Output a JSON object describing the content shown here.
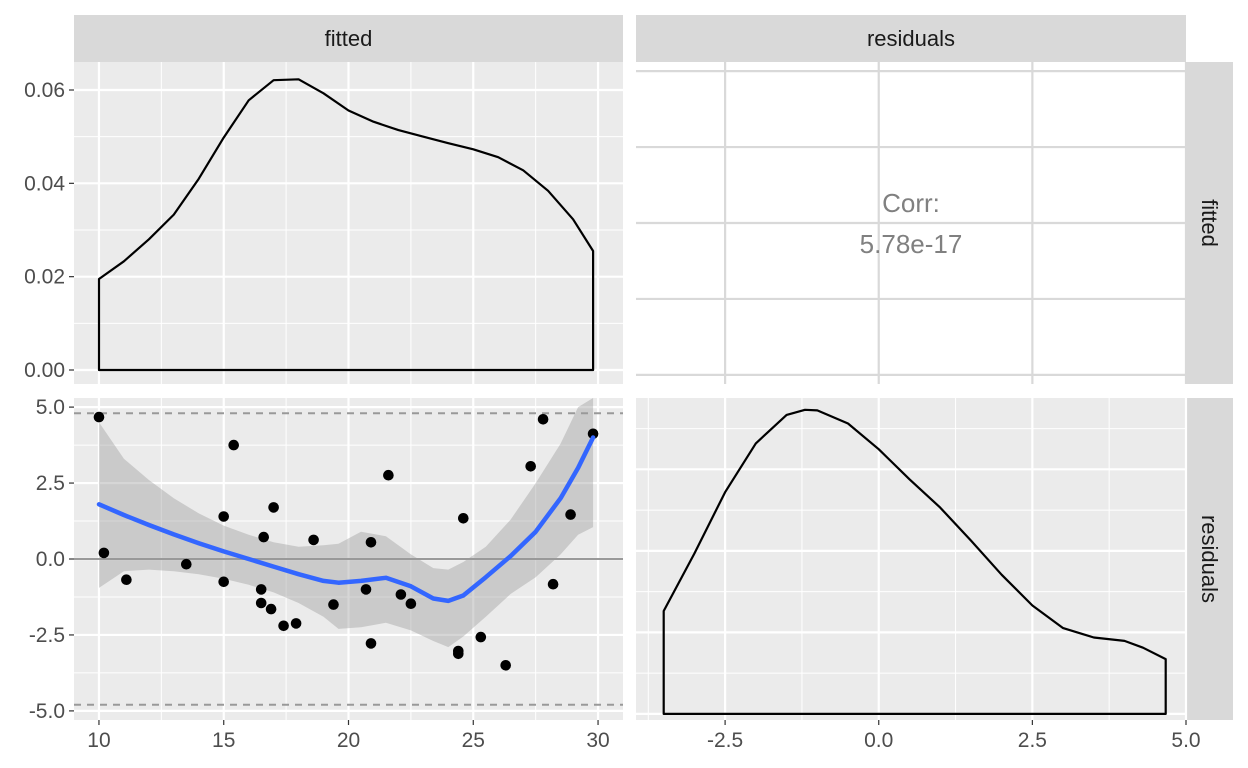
{
  "chart_data": {
    "type": "scatter",
    "layout": "pairs matrix (2x2)",
    "variables": [
      "fitted",
      "residuals"
    ],
    "strip_labels": {
      "top": [
        "fitted",
        "residuals"
      ],
      "right": [
        "fitted",
        "residuals"
      ]
    },
    "colors": {
      "panel_bg": "#ebebeb",
      "grid": "#ffffff",
      "strip_bg": "#d9d9d9",
      "points": "#000000",
      "smooth_line": "#3366ff",
      "confidence_band": "#999999",
      "reference_lines": "#999999",
      "corr_text": "#808080"
    },
    "panels": [
      {
        "id": "fitted-density",
        "type": "area",
        "position": "top-left",
        "xlim": [
          9.0,
          31.0
        ],
        "ylim": [
          -0.003,
          0.066
        ],
        "x_ticks": [
          10,
          15,
          20,
          25,
          30
        ],
        "y_ticks": [
          0.0,
          0.02,
          0.04,
          0.06
        ],
        "y_tick_labels": [
          "0.00",
          "0.02",
          "0.04",
          "0.06"
        ],
        "density": [
          [
            10.0,
            0.0195
          ],
          [
            11.0,
            0.0233
          ],
          [
            12.0,
            0.028
          ],
          [
            13.0,
            0.0333
          ],
          [
            14.0,
            0.041
          ],
          [
            15.0,
            0.0498
          ],
          [
            16.0,
            0.0578
          ],
          [
            17.0,
            0.0621
          ],
          [
            18.0,
            0.0623
          ],
          [
            19.0,
            0.0593
          ],
          [
            20.0,
            0.0556
          ],
          [
            21.0,
            0.0532
          ],
          [
            22.0,
            0.0514
          ],
          [
            23.0,
            0.05
          ],
          [
            24.0,
            0.0486
          ],
          [
            25.0,
            0.0473
          ],
          [
            26.0,
            0.0456
          ],
          [
            27.0,
            0.0428
          ],
          [
            28.0,
            0.0384
          ],
          [
            29.0,
            0.0323
          ],
          [
            29.8,
            0.0255
          ]
        ]
      },
      {
        "id": "corr-cell",
        "type": "table",
        "position": "top-right",
        "corr_label": "Corr:",
        "corr_value": "5.78e-17"
      },
      {
        "id": "fitted-vs-residuals",
        "type": "scatter",
        "position": "bottom-left",
        "xlim": [
          9.0,
          31.0
        ],
        "ylim": [
          -5.3,
          5.3
        ],
        "x_ticks": [
          10,
          15,
          20,
          25,
          30
        ],
        "y_ticks": [
          -5.0,
          -2.5,
          0.0,
          2.5,
          5.0
        ],
        "y_tick_labels": [
          "-5.0",
          "-2.5",
          "0.0",
          "2.5",
          "5.0"
        ],
        "dashed_hlines": [
          4.8,
          -4.8
        ],
        "solid_hline": 0,
        "points": [
          [
            10.0,
            4.67
          ],
          [
            10.2,
            0.2
          ],
          [
            11.1,
            -0.68
          ],
          [
            13.5,
            -0.17
          ],
          [
            15.0,
            1.4
          ],
          [
            15.0,
            -0.75
          ],
          [
            15.4,
            3.75
          ],
          [
            16.5,
            -1.0
          ],
          [
            16.5,
            -1.45
          ],
          [
            16.6,
            0.72
          ],
          [
            16.9,
            -1.65
          ],
          [
            17.0,
            1.7
          ],
          [
            17.4,
            -2.2
          ],
          [
            17.9,
            -2.12
          ],
          [
            18.6,
            0.63
          ],
          [
            19.4,
            -1.5
          ],
          [
            20.7,
            -1.0
          ],
          [
            20.9,
            0.55
          ],
          [
            20.9,
            -2.78
          ],
          [
            21.6,
            2.76
          ],
          [
            22.1,
            -1.17
          ],
          [
            22.5,
            -1.47
          ],
          [
            24.4,
            -3.03
          ],
          [
            24.4,
            -3.12
          ],
          [
            24.6,
            1.34
          ],
          [
            25.3,
            -2.57
          ],
          [
            26.3,
            -3.5
          ],
          [
            27.3,
            3.05
          ],
          [
            27.8,
            4.6
          ],
          [
            28.2,
            -0.83
          ],
          [
            28.9,
            1.46
          ],
          [
            29.8,
            4.12
          ]
        ],
        "smooth": [
          [
            10.0,
            1.8
          ],
          [
            11.0,
            1.45
          ],
          [
            12.0,
            1.12
          ],
          [
            13.0,
            0.81
          ],
          [
            14.0,
            0.52
          ],
          [
            15.0,
            0.25
          ],
          [
            16.0,
            0.0
          ],
          [
            17.0,
            -0.25
          ],
          [
            18.0,
            -0.5
          ],
          [
            19.0,
            -0.72
          ],
          [
            19.6,
            -0.78
          ],
          [
            20.5,
            -0.72
          ],
          [
            21.5,
            -0.62
          ],
          [
            22.5,
            -0.9
          ],
          [
            23.4,
            -1.3
          ],
          [
            24.0,
            -1.38
          ],
          [
            24.6,
            -1.2
          ],
          [
            25.5,
            -0.6
          ],
          [
            26.5,
            0.1
          ],
          [
            27.5,
            0.9
          ],
          [
            28.5,
            2.0
          ],
          [
            29.2,
            3.0
          ],
          [
            29.8,
            4.0
          ]
        ],
        "band_upper": [
          [
            10.0,
            4.5
          ],
          [
            11.0,
            3.3
          ],
          [
            12.0,
            2.6
          ],
          [
            13.0,
            2.0
          ],
          [
            14.0,
            1.5
          ],
          [
            15.0,
            1.1
          ],
          [
            16.0,
            0.8
          ],
          [
            17.0,
            0.55
          ],
          [
            18.0,
            0.4
          ],
          [
            19.0,
            0.45
          ],
          [
            19.6,
            0.5
          ],
          [
            20.5,
            0.9
          ],
          [
            21.5,
            0.75
          ],
          [
            22.5,
            0.15
          ],
          [
            23.4,
            -0.3
          ],
          [
            24.0,
            -0.35
          ],
          [
            24.6,
            -0.1
          ],
          [
            25.5,
            0.4
          ],
          [
            26.5,
            1.3
          ],
          [
            27.5,
            2.5
          ],
          [
            28.5,
            3.8
          ],
          [
            29.2,
            5.0
          ],
          [
            29.8,
            5.3
          ]
        ],
        "band_lower": [
          [
            10.0,
            -0.95
          ],
          [
            11.0,
            -0.4
          ],
          [
            12.0,
            -0.35
          ],
          [
            13.0,
            -0.4
          ],
          [
            14.0,
            -0.5
          ],
          [
            15.0,
            -0.65
          ],
          [
            16.0,
            -0.85
          ],
          [
            17.0,
            -1.1
          ],
          [
            18.0,
            -1.45
          ],
          [
            19.0,
            -1.9
          ],
          [
            19.6,
            -2.3
          ],
          [
            20.5,
            -2.25
          ],
          [
            21.5,
            -2.1
          ],
          [
            22.5,
            -2.35
          ],
          [
            23.4,
            -2.7
          ],
          [
            24.0,
            -2.9
          ],
          [
            24.6,
            -2.55
          ],
          [
            25.5,
            -1.9
          ],
          [
            26.5,
            -1.15
          ],
          [
            27.5,
            -0.6
          ],
          [
            28.5,
            0.15
          ],
          [
            29.2,
            0.8
          ],
          [
            29.8,
            1.05
          ]
        ]
      },
      {
        "id": "residuals-density",
        "type": "area",
        "position": "bottom-right",
        "xlim": [
          -3.95,
          5.0
        ],
        "ylim": [
          -0.003,
          0.155
        ],
        "x_ticks": [
          -2.5,
          0.0,
          2.5,
          5.0
        ],
        "x_tick_labels": [
          "-2.5",
          "0.0",
          "2.5",
          "5.0"
        ],
        "density": [
          [
            -3.5,
            0.0505
          ],
          [
            -3.0,
            0.0787
          ],
          [
            -2.5,
            0.1088
          ],
          [
            -2.0,
            0.1327
          ],
          [
            -1.5,
            0.1467
          ],
          [
            -1.2,
            0.1492
          ],
          [
            -1.0,
            0.1489
          ],
          [
            -0.5,
            0.1425
          ],
          [
            0.0,
            0.1299
          ],
          [
            0.5,
            0.1151
          ],
          [
            1.0,
            0.1012
          ],
          [
            1.5,
            0.0851
          ],
          [
            2.0,
            0.0683
          ],
          [
            2.5,
            0.0532
          ],
          [
            3.0,
            0.0421
          ],
          [
            3.5,
            0.0375
          ],
          [
            4.0,
            0.0358
          ],
          [
            4.3,
            0.0325
          ],
          [
            4.67,
            0.0269
          ]
        ]
      }
    ]
  }
}
